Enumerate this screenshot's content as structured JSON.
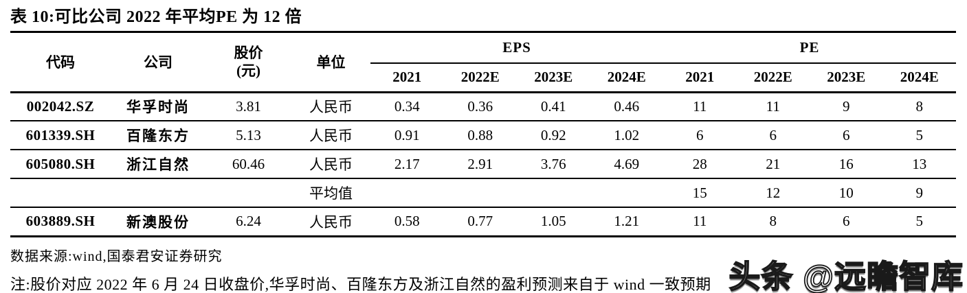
{
  "title": "表 10:可比公司 2022 年平均PE 为 12 倍",
  "table": {
    "headers": {
      "code": "代码",
      "company": "公司",
      "price_line1": "股价",
      "price_line2": "(元)",
      "unit": "单位",
      "eps_group": "EPS",
      "pe_group": "PE",
      "years": [
        "2021",
        "2022E",
        "2023E",
        "2024E"
      ]
    },
    "rows": [
      {
        "code": "002042.SZ",
        "company": "华孚时尚",
        "price": "3.81",
        "unit": "人民币",
        "eps": [
          "0.34",
          "0.36",
          "0.41",
          "0.46"
        ],
        "pe": [
          "11",
          "11",
          "9",
          "8"
        ]
      },
      {
        "code": "601339.SH",
        "company": "百隆东方",
        "price": "5.13",
        "unit": "人民币",
        "eps": [
          "0.91",
          "0.88",
          "0.92",
          "1.02"
        ],
        "pe": [
          "6",
          "6",
          "6",
          "5"
        ]
      },
      {
        "code": "605080.SH",
        "company": "浙江自然",
        "price": "60.46",
        "unit": "人民币",
        "eps": [
          "2.17",
          "2.91",
          "3.76",
          "4.69"
        ],
        "pe": [
          "28",
          "21",
          "16",
          "13"
        ]
      },
      {
        "average_label": "平均值",
        "pe": [
          "15",
          "12",
          "10",
          "9"
        ]
      },
      {
        "code": "603889.SH",
        "company": "新澳股份",
        "price": "6.24",
        "unit": "人民币",
        "eps": [
          "0.58",
          "0.77",
          "1.05",
          "1.21"
        ],
        "pe": [
          "11",
          "8",
          "6",
          "5"
        ]
      }
    ]
  },
  "source": "数据来源:wind,国泰君安证券研究",
  "note": "注:股价对应 2022 年 6 月 24 日收盘价,华孚时尚、百隆东方及浙江自然的盈利预测来自于 wind 一致预期",
  "watermark": "头条 @远瞻智库",
  "colors": {
    "text": "#000000",
    "line": "#000000",
    "background": "#ffffff"
  }
}
